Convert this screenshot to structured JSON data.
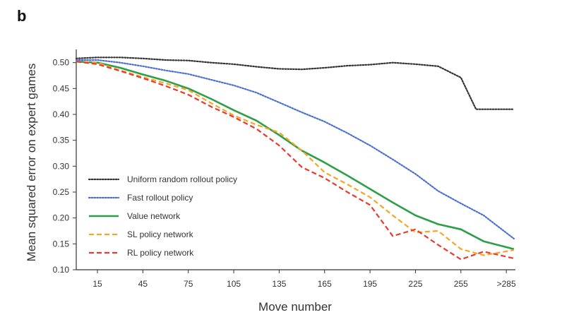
{
  "panel_label": "b",
  "chart_data": {
    "type": "line",
    "xlabel": "Move number",
    "ylabel": "Mean squared error on expert games",
    "x_tick_labels": [
      "15",
      "45",
      "75",
      "105",
      "135",
      "165",
      "195",
      "225",
      "255",
      ">285"
    ],
    "x_tick_values": [
      15,
      45,
      75,
      105,
      135,
      165,
      195,
      225,
      255,
      285
    ],
    "xlim": [
      1,
      291
    ],
    "ylim": [
      0.1,
      0.52
    ],
    "y_ticks": [
      "0.10",
      "0.15",
      "0.20",
      "0.25",
      "0.30",
      "0.35",
      "0.40",
      "0.45",
      "0.50"
    ],
    "y_tick_values": [
      0.1,
      0.15,
      0.2,
      0.25,
      0.3,
      0.35,
      0.4,
      0.45,
      0.5
    ],
    "grid": false,
    "legend_position": "bottom-left",
    "series": [
      {
        "name": "Uniform random rollout policy",
        "color": "#333333",
        "style": "dotted",
        "x": [
          1,
          15,
          30,
          45,
          60,
          75,
          90,
          105,
          120,
          135,
          150,
          165,
          180,
          195,
          210,
          225,
          240,
          255,
          265,
          275,
          290
        ],
        "y": [
          0.508,
          0.51,
          0.51,
          0.508,
          0.505,
          0.504,
          0.5,
          0.497,
          0.492,
          0.488,
          0.487,
          0.49,
          0.494,
          0.496,
          0.5,
          0.497,
          0.493,
          0.471,
          0.41,
          0.41,
          0.41
        ]
      },
      {
        "name": "Fast rollout policy",
        "color": "#4a6fd4",
        "style": "dotted",
        "x": [
          1,
          15,
          30,
          45,
          60,
          75,
          90,
          105,
          120,
          135,
          150,
          165,
          180,
          195,
          210,
          225,
          240,
          255,
          270,
          290
        ],
        "y": [
          0.505,
          0.505,
          0.5,
          0.493,
          0.485,
          0.478,
          0.467,
          0.456,
          0.442,
          0.423,
          0.404,
          0.386,
          0.364,
          0.34,
          0.313,
          0.285,
          0.252,
          0.228,
          0.205,
          0.16
        ]
      },
      {
        "name": "Value network",
        "color": "#2e9e48",
        "style": "solid",
        "x": [
          1,
          15,
          30,
          45,
          60,
          75,
          90,
          105,
          120,
          135,
          150,
          165,
          180,
          195,
          210,
          225,
          240,
          255,
          270,
          290
        ],
        "y": [
          0.502,
          0.5,
          0.49,
          0.477,
          0.465,
          0.45,
          0.43,
          0.408,
          0.388,
          0.36,
          0.33,
          0.307,
          0.282,
          0.256,
          0.23,
          0.205,
          0.188,
          0.178,
          0.155,
          0.14
        ]
      },
      {
        "name": "SL policy network",
        "color": "#f5a623",
        "style": "dashed",
        "x": [
          1,
          15,
          30,
          45,
          60,
          75,
          90,
          105,
          120,
          135,
          150,
          165,
          180,
          195,
          210,
          225,
          240,
          255,
          270,
          290
        ],
        "y": [
          0.502,
          0.5,
          0.485,
          0.472,
          0.46,
          0.447,
          0.422,
          0.398,
          0.38,
          0.365,
          0.33,
          0.288,
          0.265,
          0.24,
          0.205,
          0.172,
          0.175,
          0.14,
          0.128,
          0.138
        ]
      },
      {
        "name": "RL policy network",
        "color": "#e83a2e",
        "style": "dashed",
        "x": [
          1,
          15,
          30,
          45,
          60,
          75,
          90,
          105,
          120,
          135,
          150,
          165,
          180,
          195,
          210,
          225,
          240,
          255,
          270,
          290
        ],
        "y": [
          0.502,
          0.497,
          0.484,
          0.47,
          0.455,
          0.438,
          0.415,
          0.395,
          0.372,
          0.34,
          0.298,
          0.277,
          0.25,
          0.225,
          0.165,
          0.178,
          0.148,
          0.12,
          0.135,
          0.122
        ]
      }
    ]
  }
}
